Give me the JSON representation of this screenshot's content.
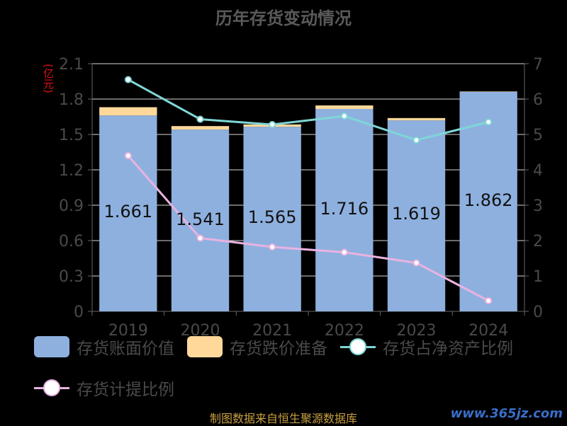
{
  "title": "历年存货变动情况",
  "unit_label": "(亿元)",
  "colors": {
    "bar_book": "#8eb0df",
    "bar_provision": "#ffd89a",
    "line_ratio": "#7fd6d6",
    "line_provision": "#e8b3e0",
    "axis": "#666666",
    "grid": "#d8d8d8"
  },
  "chart_data": {
    "type": "bar",
    "title": "历年存货变动情况",
    "categories": [
      "2019",
      "2020",
      "2021",
      "2022",
      "2023",
      "2024"
    ],
    "series": [
      {
        "name": "存货账面价值",
        "kind": "bar",
        "axis": "left",
        "stack": "s",
        "values": [
          1.661,
          1.541,
          1.565,
          1.716,
          1.619,
          1.862
        ]
      },
      {
        "name": "存货跌价准备",
        "kind": "bar",
        "axis": "left",
        "stack": "s",
        "values": [
          0.07,
          0.03,
          0.02,
          0.03,
          0.02,
          0.003
        ]
      },
      {
        "name": "存货占净资产比例",
        "kind": "line",
        "axis": "right",
        "values": [
          6.55,
          5.43,
          5.28,
          5.52,
          4.84,
          5.35
        ]
      },
      {
        "name": "存货计提比例",
        "kind": "line",
        "axis": "right",
        "values": [
          4.4,
          2.07,
          1.82,
          1.67,
          1.37,
          0.3
        ]
      }
    ],
    "data_labels": [
      "1.661",
      "1.541",
      "1.565",
      "1.716",
      "1.619",
      "1.862"
    ],
    "y_left": {
      "min": 0,
      "max": 2.1,
      "ticks": [
        "0",
        "0.3",
        "0.6",
        "0.9",
        "1.2",
        "1.5",
        "1.8",
        "2.1"
      ]
    },
    "y_right": {
      "min": 0,
      "max": 7,
      "ticks": [
        "0",
        "1",
        "2",
        "3",
        "4",
        "5",
        "6",
        "7"
      ]
    },
    "grid": true,
    "legend_position": "bottom"
  },
  "legend": [
    {
      "label": "存货账面价值",
      "icon": "bar-swatch"
    },
    {
      "label": "存货跌价准备",
      "icon": "bar-swatch"
    },
    {
      "label": "存货占净资产比例",
      "icon": "line-swatch"
    },
    {
      "label": "存货计提比例",
      "icon": "line-swatch"
    }
  ],
  "footer": "制图数据来自恒生聚源数据库",
  "watermark": "www.365jz.com"
}
